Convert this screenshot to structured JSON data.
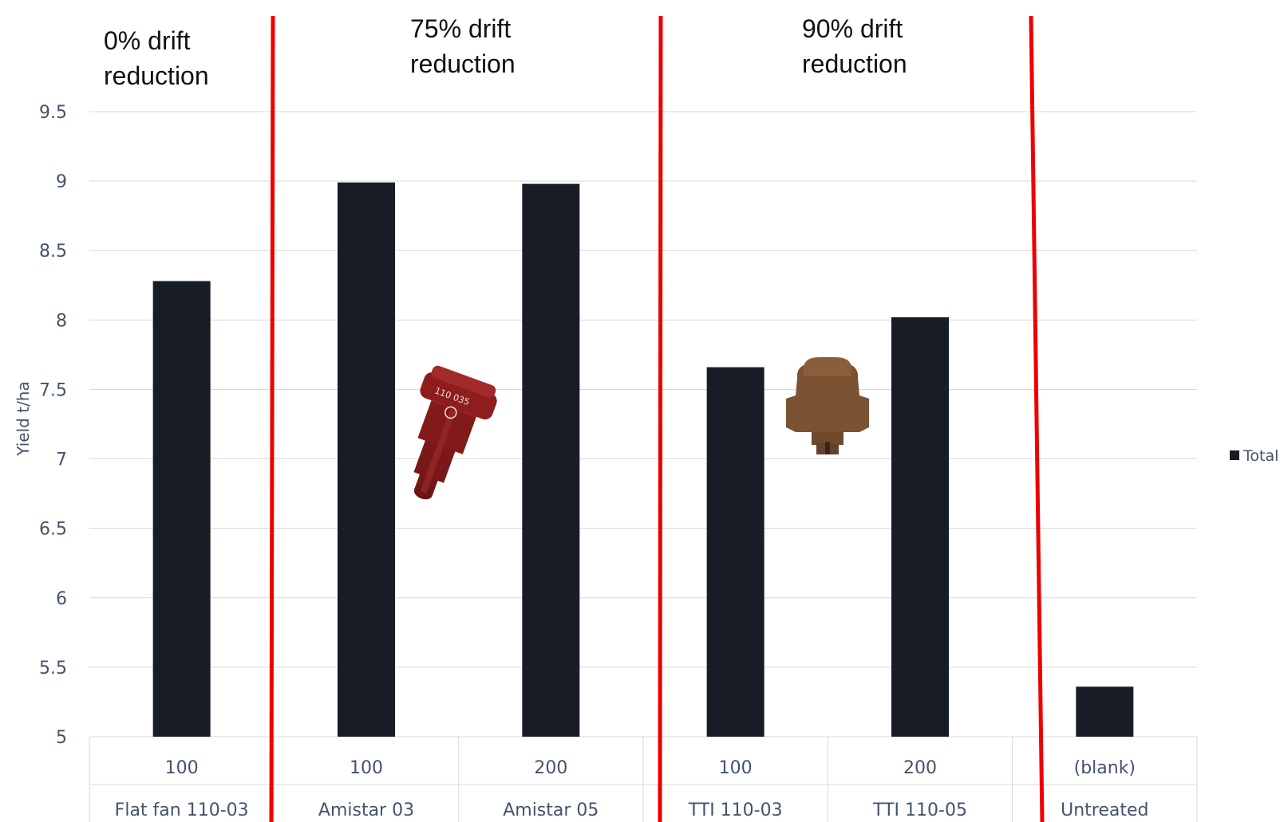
{
  "chart_data": {
    "type": "bar",
    "ylabel": "Yield t/ha",
    "ylim": [
      5,
      9.5
    ],
    "yticks": [
      "5",
      "5.5",
      "6",
      "6.5",
      "7",
      "7.5",
      "8",
      "8.5",
      "9",
      "9.5"
    ],
    "grid": true,
    "legend_position": "right",
    "categories": [
      {
        "value": "100",
        "group": "Flat fan 110-03"
      },
      {
        "value": "100",
        "group": "Amistar 03"
      },
      {
        "value": "200",
        "group": "Amistar 05"
      },
      {
        "value": "100",
        "group": "TTI 110-03"
      },
      {
        "value": "200",
        "group": "TTI 110-05"
      },
      {
        "value": "(blank)",
        "group": "Untreated"
      }
    ],
    "series": [
      {
        "name": "Total",
        "values": [
          8.28,
          8.99,
          8.98,
          7.66,
          8.02,
          5.36
        ]
      }
    ],
    "annotations": [
      {
        "lines": [
          "0% drift",
          "reduction"
        ]
      },
      {
        "lines": [
          "75% drift",
          "reduction"
        ]
      },
      {
        "lines": [
          "90% drift",
          "reduction"
        ]
      }
    ],
    "colors": {
      "bar": "#181C26",
      "divider": "#EE0000",
      "grid": "#D9D9D9",
      "axis_text": "#44546A",
      "nozzle_red": "#8E1E1E",
      "nozzle_brown": "#7B5232"
    }
  }
}
